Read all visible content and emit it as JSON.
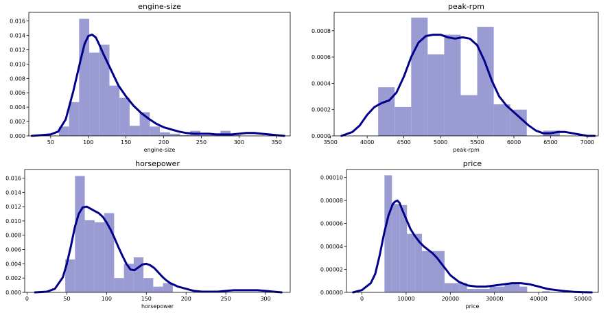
{
  "figure": {
    "bar_color": "#9a9bd2",
    "kde_color": "#00008b"
  },
  "chart_data": [
    {
      "type": "bar",
      "title": "engine-size",
      "xlabel": "engine-size",
      "ylabel": "",
      "xlim": [
        21,
        368
      ],
      "ylim": [
        0,
        0.0172
      ],
      "xticks": [
        50,
        100,
        150,
        200,
        250,
        300,
        350
      ],
      "xtick_labels": [
        "50",
        "100",
        "150",
        "200",
        "250",
        "300",
        "350"
      ],
      "yticks": [
        0,
        0.002,
        0.004,
        0.006,
        0.008,
        0.01,
        0.012,
        0.014,
        0.016
      ],
      "ytick_labels": [
        "0.000",
        "0.002",
        "0.004",
        "0.006",
        "0.008",
        "0.010",
        "0.012",
        "0.014",
        "0.016"
      ],
      "histogram": {
        "edges": [
          61,
          74.4,
          87.8,
          101.2,
          114.6,
          128,
          141.4,
          154.8,
          168.2,
          181.6,
          195,
          208.4,
          221.8,
          235.2,
          248.6,
          262,
          275.4,
          288.8,
          302.2,
          315.6,
          329
        ],
        "values": [
          0.0013,
          0.0047,
          0.0163,
          0.0116,
          0.0127,
          0.007,
          0.0053,
          0.0014,
          0.0033,
          0.0013,
          0.0005,
          0.0003,
          0.0001,
          0.0007,
          0.0001,
          0.0001,
          0.0007,
          0.0001,
          0.0,
          0.0
        ]
      },
      "kde": {
        "x": [
          25,
          50,
          60,
          70,
          80,
          90,
          95,
          100,
          105,
          110,
          115,
          120,
          130,
          140,
          150,
          160,
          170,
          180,
          190,
          200,
          210,
          220,
          230,
          240,
          250,
          260,
          270,
          280,
          290,
          300,
          310,
          320,
          330,
          340,
          350,
          360
        ],
        "y": [
          0.0,
          0.0002,
          0.0006,
          0.0023,
          0.0062,
          0.0107,
          0.0128,
          0.0139,
          0.0141,
          0.0137,
          0.0126,
          0.0114,
          0.0092,
          0.007,
          0.0055,
          0.0042,
          0.0032,
          0.0024,
          0.0017,
          0.0012,
          0.0009,
          0.0006,
          0.0004,
          0.0003,
          0.0003,
          0.0003,
          0.0002,
          0.0002,
          0.0002,
          0.0003,
          0.0004,
          0.0004,
          0.0003,
          0.0002,
          0.0001,
          0.0
        ]
      }
    },
    {
      "type": "bar",
      "title": "peak-rpm",
      "xlabel": "peak-rpm",
      "ylabel": "",
      "xlim": [
        3550,
        7150
      ],
      "ylim": [
        0,
        0.00094
      ],
      "xticks": [
        3500,
        4000,
        4500,
        5000,
        5500,
        6000,
        6500,
        7000
      ],
      "xtick_labels": [
        "3500",
        "4000",
        "4500",
        "5000",
        "5500",
        "6000",
        "6500",
        "7000"
      ],
      "yticks": [
        0,
        0.0002,
        0.0004,
        0.0006,
        0.0008
      ],
      "ytick_labels": [
        "0.0000",
        "0.0002",
        "0.0004",
        "0.0006",
        "0.0008"
      ],
      "histogram": {
        "edges": [
          4150,
          4375,
          4600,
          4825,
          5050,
          5275,
          5500,
          5725,
          5950,
          6175,
          6400,
          6625
        ],
        "values": [
          0.00037,
          0.00022,
          0.0009,
          0.00062,
          0.00077,
          0.00031,
          0.00083,
          0.00024,
          0.0002,
          0.0,
          4e-05
        ]
      },
      "kde": {
        "x": [
          3650,
          3800,
          3900,
          4000,
          4100,
          4200,
          4300,
          4400,
          4500,
          4600,
          4700,
          4800,
          4900,
          5000,
          5100,
          5200,
          5300,
          5400,
          5500,
          5600,
          5700,
          5800,
          5900,
          6000,
          6100,
          6200,
          6300,
          6400,
          6500,
          6600,
          6700,
          6800,
          6900,
          7000,
          7100
        ],
        "y": [
          0.0,
          3e-05,
          8e-05,
          0.00016,
          0.00022,
          0.00025,
          0.00027,
          0.00033,
          0.00045,
          0.0006,
          0.00071,
          0.00076,
          0.00077,
          0.00077,
          0.00075,
          0.00074,
          0.00075,
          0.00074,
          0.00069,
          0.00057,
          0.00042,
          0.0003,
          0.00023,
          0.00018,
          0.00013,
          8e-05,
          4e-05,
          2e-05,
          2e-05,
          3e-05,
          3e-05,
          2e-05,
          1e-05,
          0.0,
          0.0
        ]
      }
    },
    {
      "type": "bar",
      "title": "horsepower",
      "xlabel": "horsepower",
      "ylabel": "",
      "xlim": [
        -3,
        331
      ],
      "ylim": [
        0,
        0.0172
      ],
      "xticks": [
        0,
        50,
        100,
        150,
        200,
        250,
        300
      ],
      "xtick_labels": [
        "0",
        "50",
        "100",
        "150",
        "200",
        "250",
        "300"
      ],
      "yticks": [
        0,
        0.002,
        0.004,
        0.006,
        0.008,
        0.01,
        0.012,
        0.014,
        0.016
      ],
      "ytick_labels": [
        "0.000",
        "0.002",
        "0.004",
        "0.006",
        "0.008",
        "0.010",
        "0.012",
        "0.014",
        "0.016"
      ],
      "histogram": {
        "edges": [
          48,
          60.3,
          72.6,
          84.9,
          97.2,
          109.5,
          121.8,
          134.1,
          146.4,
          158.7,
          171,
          183.3,
          195.6,
          207.9,
          220.2,
          232.5,
          244.8,
          257.1,
          269.4,
          281.7,
          294
        ],
        "values": [
          0.0046,
          0.0163,
          0.0101,
          0.0098,
          0.0111,
          0.002,
          0.004,
          0.0049,
          0.002,
          0.0008,
          0.0013,
          0.0,
          0.0,
          0.0,
          0.0,
          0.0001,
          0.0,
          0.0,
          0.0,
          0.0
        ]
      },
      "kde": {
        "x": [
          10,
          25,
          35,
          45,
          50,
          55,
          60,
          65,
          70,
          75,
          80,
          85,
          90,
          95,
          100,
          105,
          110,
          115,
          120,
          125,
          130,
          135,
          140,
          145,
          150,
          155,
          160,
          165,
          170,
          175,
          180,
          190,
          200,
          210,
          220,
          230,
          240,
          250,
          260,
          270,
          280,
          290,
          300,
          310,
          320
        ],
        "y": [
          0.0,
          0.0001,
          0.0005,
          0.0021,
          0.004,
          0.0064,
          0.0091,
          0.011,
          0.0119,
          0.012,
          0.0117,
          0.0114,
          0.0111,
          0.0106,
          0.0098,
          0.0088,
          0.0076,
          0.0063,
          0.0051,
          0.004,
          0.0032,
          0.0031,
          0.0035,
          0.0039,
          0.004,
          0.0038,
          0.0034,
          0.0028,
          0.0022,
          0.0017,
          0.0013,
          0.0008,
          0.0005,
          0.0002,
          0.0001,
          0.0001,
          0.0001,
          0.0002,
          0.0003,
          0.0003,
          0.0003,
          0.0003,
          0.0002,
          0.0001,
          0.0
        ]
      }
    },
    {
      "type": "bar",
      "title": "price",
      "xlabel": "price",
      "ylabel": "",
      "xlim": [
        -3500,
        53500
      ],
      "ylim": [
        0,
        0.000107
      ],
      "xticks": [
        0,
        10000,
        20000,
        30000,
        40000,
        50000
      ],
      "xtick_labels": [
        "0",
        "10000",
        "20000",
        "30000",
        "40000",
        "50000"
      ],
      "yticks": [
        0,
        2e-05,
        4e-05,
        6e-05,
        8e-05,
        0.0001
      ],
      "ytick_labels": [
        "0.00000",
        "0.00002",
        "0.00004",
        "0.00006",
        "0.00008",
        "0.00010"
      ],
      "histogram": {
        "edges": [
          5100,
          6800,
          8500,
          10200,
          11900,
          13600,
          15300,
          17000,
          18700,
          20400,
          22100,
          23800,
          25500,
          27200,
          28900,
          30600,
          32300,
          34000,
          35700,
          37400,
          39100,
          40800,
          42500,
          44200,
          45900
        ],
        "values": [
          0.000102,
          7.7e-05,
          7.6e-05,
          5.1e-05,
          5.1e-05,
          3.6e-05,
          3.6e-05,
          3.6e-05,
          8e-06,
          8e-06,
          8e-06,
          3e-06,
          3e-06,
          3e-06,
          5e-06,
          5e-06,
          8e-06,
          8e-06,
          5e-06,
          0.0,
          0.0,
          1e-06,
          0.0,
          0.0
        ]
      },
      "kde": {
        "x": [
          -2000,
          0,
          2000,
          3000,
          4000,
          5000,
          6000,
          7000,
          7500,
          8000,
          8500,
          9000,
          10000,
          11000,
          12000,
          13000,
          14000,
          15000,
          16000,
          17000,
          18000,
          19000,
          20000,
          22000,
          24000,
          26000,
          28000,
          30000,
          32000,
          34000,
          35000,
          36000,
          38000,
          40000,
          42000,
          44000,
          46000,
          48000,
          50000,
          52000
        ],
        "y": [
          0.0,
          2e-06,
          8e-06,
          1.6e-05,
          3.2e-05,
          5.1e-05,
          6.7e-05,
          7.7e-05,
          7.9e-05,
          8e-05,
          7.8e-05,
          7.3e-05,
          6.4e-05,
          5.5e-05,
          4.9e-05,
          4.4e-05,
          4e-05,
          3.7e-05,
          3.4e-05,
          3e-05,
          2.5e-05,
          2e-05,
          1.5e-05,
          9e-06,
          6e-06,
          5e-06,
          5e-06,
          6e-06,
          7e-06,
          8e-06,
          8e-06,
          8e-06,
          7e-06,
          5e-06,
          3e-06,
          2e-06,
          1e-06,
          5e-07,
          2e-07,
          0.0
        ]
      }
    }
  ]
}
